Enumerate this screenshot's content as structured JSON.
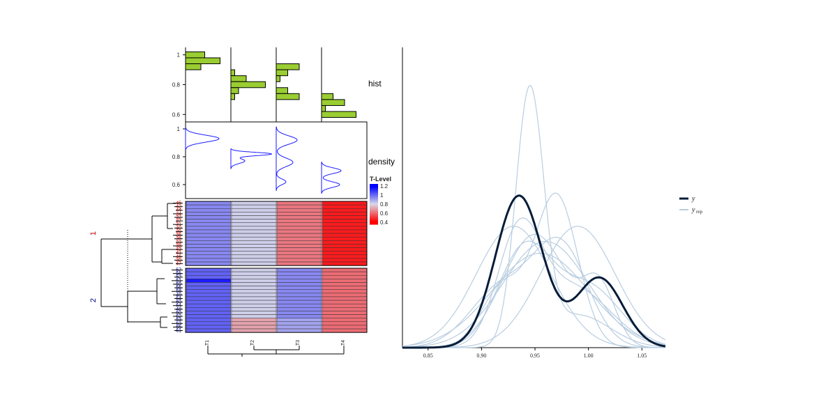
{
  "chart_data": [
    {
      "type": "histogram",
      "panel_label": "hist",
      "columns": [
        "T1",
        "T2",
        "T3",
        "T4"
      ],
      "ylim": [
        0.55,
        1.05
      ],
      "y_ticks": [
        "0.6",
        "0.8",
        "1"
      ],
      "y_tick_values": [
        0.6,
        0.8,
        1.0
      ],
      "bin_width": 0.04,
      "bins": [
        {
          "column": "T1",
          "centers": [
            1.0,
            0.96,
            0.92
          ],
          "counts": [
            5,
            9,
            4
          ]
        },
        {
          "column": "T2",
          "centers": [
            0.88,
            0.84,
            0.8,
            0.76,
            0.72
          ],
          "counts": [
            1,
            4,
            9,
            2,
            1
          ]
        },
        {
          "column": "T3",
          "centers": [
            0.92,
            0.88,
            0.84,
            0.76,
            0.72,
            0.68
          ],
          "counts": [
            6,
            3,
            1,
            3,
            6,
            0
          ]
        },
        {
          "column": "T4",
          "centers": [
            0.72,
            0.68,
            0.64,
            0.6
          ],
          "counts": [
            3,
            6,
            1,
            9
          ]
        }
      ],
      "color": "#9acd32"
    },
    {
      "type": "line",
      "panel_label": "density",
      "ylim": [
        0.5,
        1.05
      ],
      "y_ticks": [
        "0.6",
        "0.8",
        "1"
      ],
      "y_tick_values": [
        0.6,
        0.8,
        1.0
      ],
      "color": "#1a1aff",
      "curves": [
        {
          "column": "T1",
          "peaks": [
            {
              "mu": 0.93,
              "sd": 0.025,
              "h": 48
            }
          ]
        },
        {
          "column": "T2",
          "peaks": [
            {
              "mu": 0.82,
              "sd": 0.012,
              "h": 58
            },
            {
              "mu": 0.77,
              "sd": 0.018,
              "h": 20
            }
          ]
        },
        {
          "column": "T3",
          "peaks": [
            {
              "mu": 0.92,
              "sd": 0.03,
              "h": 30
            },
            {
              "mu": 0.76,
              "sd": 0.03,
              "h": 24
            },
            {
              "mu": 0.62,
              "sd": 0.02,
              "h": 14
            }
          ]
        },
        {
          "column": "T4",
          "peaks": [
            {
              "mu": 0.7,
              "sd": 0.02,
              "h": 28
            },
            {
              "mu": 0.6,
              "sd": 0.02,
              "h": 26
            }
          ]
        }
      ]
    },
    {
      "type": "heatmap",
      "columns": [
        "T1",
        "T2",
        "T3",
        "T4"
      ],
      "legend_title": "T-Level",
      "legend_ticks": [
        "1.2",
        "1",
        "0.8",
        "0.6",
        "0.4"
      ],
      "legend_tick_values": [
        1.2,
        1.0,
        0.8,
        0.6,
        0.4
      ],
      "color_low": "#ff0000",
      "color_mid": "#d9d9e8",
      "color_high": "#0000ff",
      "clusters": [
        {
          "label": "1",
          "color": "#cc0000",
          "rows": [
            "45",
            "42",
            "44",
            "34",
            "32",
            "37",
            "31",
            "40",
            "39",
            "35",
            "36",
            "33",
            "38",
            "43",
            "41",
            "46",
            "30",
            "47"
          ],
          "values": [
            [
              0.95,
              0.82,
              0.62,
              0.45
            ],
            [
              0.95,
              0.82,
              0.62,
              0.45
            ],
            [
              0.95,
              0.82,
              0.62,
              0.45
            ],
            [
              0.95,
              0.82,
              0.62,
              0.45
            ],
            [
              0.95,
              0.82,
              0.62,
              0.45
            ],
            [
              0.95,
              0.82,
              0.62,
              0.45
            ],
            [
              0.95,
              0.82,
              0.62,
              0.45
            ],
            [
              0.95,
              0.82,
              0.62,
              0.45
            ],
            [
              0.95,
              0.82,
              0.62,
              0.45
            ],
            [
              0.95,
              0.82,
              0.62,
              0.45
            ],
            [
              0.95,
              0.82,
              0.62,
              0.45
            ],
            [
              0.95,
              0.82,
              0.62,
              0.45
            ],
            [
              0.95,
              0.82,
              0.62,
              0.45
            ],
            [
              0.95,
              0.82,
              0.62,
              0.45
            ],
            [
              0.95,
              0.82,
              0.62,
              0.45
            ],
            [
              0.95,
              0.82,
              0.62,
              0.45
            ],
            [
              0.95,
              0.82,
              0.62,
              0.45
            ],
            [
              0.95,
              0.82,
              0.62,
              0.45
            ]
          ]
        },
        {
          "label": "2",
          "color": "#000080",
          "rows": [
            "57",
            "55",
            "52",
            "51",
            "59",
            "56",
            "58",
            "49",
            "54",
            "60",
            "64",
            "48",
            "50",
            "62",
            "53",
            "63",
            "65",
            "61"
          ],
          "values": [
            [
              1.02,
              0.82,
              0.95,
              0.6
            ],
            [
              1.02,
              0.82,
              0.95,
              0.6
            ],
            [
              1.02,
              0.82,
              0.95,
              0.6
            ],
            [
              1.15,
              0.82,
              0.95,
              0.6
            ],
            [
              1.02,
              0.82,
              0.95,
              0.6
            ],
            [
              1.02,
              0.82,
              0.95,
              0.6
            ],
            [
              1.02,
              0.82,
              0.95,
              0.6
            ],
            [
              1.02,
              0.82,
              0.95,
              0.6
            ],
            [
              1.02,
              0.82,
              0.95,
              0.6
            ],
            [
              1.02,
              0.82,
              0.95,
              0.6
            ],
            [
              1.02,
              0.82,
              0.95,
              0.6
            ],
            [
              1.02,
              0.82,
              0.95,
              0.6
            ],
            [
              1.02,
              0.82,
              0.95,
              0.6
            ],
            [
              1.02,
              0.82,
              0.95,
              0.6
            ],
            [
              1.02,
              0.7,
              0.9,
              0.6
            ],
            [
              1.02,
              0.7,
              0.9,
              0.6
            ],
            [
              1.02,
              0.7,
              0.9,
              0.6
            ],
            [
              1.02,
              0.7,
              0.9,
              0.6
            ]
          ]
        }
      ]
    },
    {
      "type": "line",
      "subtype": "ppc-density-overlay",
      "xlim": [
        0.826,
        1.072
      ],
      "x_ticks": [
        "0.85",
        "0.90",
        "0.95",
        "1.00",
        "1.05"
      ],
      "x_tick_values": [
        0.85,
        0.9,
        0.95,
        1.0,
        1.05
      ],
      "legend": {
        "y": "y",
        "yrep": "y",
        "yrep_sub": "rep"
      },
      "series": [
        {
          "name": "y",
          "color": "#051c38",
          "peaks": [
            {
              "mu": 0.935,
              "sd": 0.022,
              "w": 1.0
            },
            {
              "mu": 1.01,
              "sd": 0.022,
              "w": 0.46
            }
          ]
        },
        {
          "name": "yrep",
          "color": "#b8cde0",
          "draws": [
            [
              {
                "mu": 0.945,
                "sd": 0.013,
                "w": 1.0
              },
              {
                "mu": 0.99,
                "sd": 0.03,
                "w": 0.3
              }
            ],
            [
              {
                "mu": 0.97,
                "sd": 0.02,
                "w": 1.0
              },
              {
                "mu": 0.92,
                "sd": 0.02,
                "w": 0.4
              }
            ],
            [
              {
                "mu": 0.93,
                "sd": 0.035,
                "w": 1.0
              }
            ],
            [
              {
                "mu": 0.96,
                "sd": 0.04,
                "w": 1.0
              }
            ],
            [
              {
                "mu": 0.95,
                "sd": 0.03,
                "w": 1.0
              },
              {
                "mu": 1.01,
                "sd": 0.015,
                "w": 0.25
              }
            ],
            [
              {
                "mu": 0.99,
                "sd": 0.035,
                "w": 1.0
              }
            ],
            [
              {
                "mu": 0.94,
                "sd": 0.025,
                "w": 0.8
              },
              {
                "mu": 1.0,
                "sd": 0.03,
                "w": 0.6
              }
            ],
            [
              {
                "mu": 0.92,
                "sd": 0.03,
                "w": 0.6
              },
              {
                "mu": 0.975,
                "sd": 0.025,
                "w": 0.8
              }
            ],
            [
              {
                "mu": 0.955,
                "sd": 0.045,
                "w": 1.0
              }
            ],
            [
              {
                "mu": 0.935,
                "sd": 0.02,
                "w": 0.7
              },
              {
                "mu": 0.985,
                "sd": 0.035,
                "w": 0.7
              }
            ]
          ]
        }
      ]
    }
  ]
}
